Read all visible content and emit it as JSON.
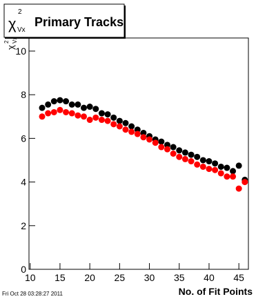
{
  "chart_data": {
    "type": "scatter",
    "title": {
      "symbol": "χ",
      "superscript": "2",
      "subscript": "Vx",
      "text": "Primary Tracks"
    },
    "ylabel": {
      "symbol": "χ",
      "superscript": "2",
      "subscript": "Vx"
    },
    "xlabel": "No. of Fit Points",
    "timestamp": "Fri Oct 28 03:28:27 2011",
    "x": [
      12,
      13,
      14,
      15,
      16,
      17,
      18,
      19,
      20,
      21,
      22,
      23,
      24,
      25,
      26,
      27,
      28,
      29,
      30,
      31,
      32,
      33,
      34,
      35,
      36,
      37,
      38,
      39,
      40,
      41,
      42,
      43,
      44,
      45,
      46
    ],
    "series": [
      {
        "color": "#000000",
        "values": [
          7.4,
          7.55,
          7.7,
          7.75,
          7.7,
          7.55,
          7.55,
          7.4,
          7.45,
          7.35,
          7.15,
          7.1,
          6.95,
          6.8,
          6.7,
          6.55,
          6.4,
          6.25,
          6.1,
          5.95,
          5.85,
          5.7,
          5.6,
          5.45,
          5.35,
          5.25,
          5.15,
          5.0,
          4.95,
          4.85,
          4.7,
          4.65,
          4.5,
          4.75,
          4.1
        ]
      },
      {
        "color": "#ff0000",
        "values": [
          7.0,
          7.15,
          7.2,
          7.3,
          7.2,
          7.15,
          7.05,
          7.0,
          6.85,
          6.95,
          6.85,
          6.8,
          6.65,
          6.55,
          6.4,
          6.3,
          6.2,
          6.05,
          5.95,
          5.8,
          5.6,
          5.5,
          5.3,
          5.15,
          5.05,
          4.95,
          4.8,
          4.7,
          4.6,
          4.55,
          4.4,
          4.25,
          4.25,
          3.7,
          4.0
        ]
      }
    ],
    "xlim": [
      9.8,
      46.6
    ],
    "xticks": [
      10,
      15,
      20,
      25,
      30,
      35,
      40,
      45
    ],
    "ylim": [
      0,
      10.6
    ],
    "yticks": [
      0,
      2,
      4,
      6,
      8,
      10
    ],
    "grid": false
  }
}
